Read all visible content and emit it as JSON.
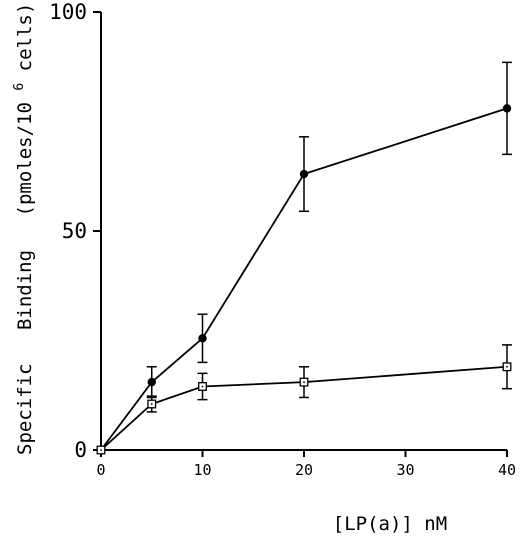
{
  "chart_data": {
    "type": "line",
    "title": "",
    "xlabel": "[LP(a)] nM",
    "ylabel_parts": [
      "Specific",
      "Binding",
      "(pmoles/10",
      "6",
      "cells)"
    ],
    "xlim": [
      0,
      40
    ],
    "ylim": [
      0,
      100
    ],
    "xticks": [
      0,
      10,
      20,
      30,
      40
    ],
    "xtick_labels": [
      "0",
      "10",
      "20",
      "30",
      "40"
    ],
    "yticks": [
      0,
      50,
      100
    ],
    "ytick_labels": [
      "0",
      "50",
      "100"
    ],
    "grid": false,
    "legend": "none",
    "series": [
      {
        "marker": "filled-circle",
        "x": [
          0,
          5,
          10,
          20,
          40
        ],
        "y": [
          0,
          15.5,
          25.5,
          63,
          78
        ],
        "err": [
          0,
          3.5,
          5.5,
          8.5,
          10.5
        ]
      },
      {
        "marker": "open-square",
        "x": [
          0,
          5,
          10,
          20,
          40
        ],
        "y": [
          0,
          10.5,
          14.5,
          15.5,
          19
        ],
        "err": [
          0,
          1.8,
          3,
          3.5,
          5
        ]
      }
    ]
  }
}
